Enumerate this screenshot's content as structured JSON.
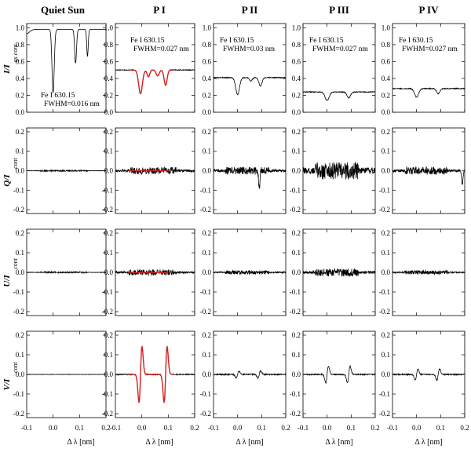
{
  "column_titles": [
    "Quiet Sun",
    "P I",
    "P II",
    "P III",
    "P IV"
  ],
  "row_labels": [
    {
      "main": "I/I",
      "sub": "qs cont"
    },
    {
      "main": "Q/I",
      "sub": "cont"
    },
    {
      "main": "U/I",
      "sub": "cont"
    },
    {
      "main": "V/I",
      "sub": "cont"
    }
  ],
  "x_axis_label": "Δ λ [nm]",
  "x_tick_labels": [
    "-0.1",
    "0.0",
    "0.1",
    "0.2"
  ],
  "annotations": [
    {
      "line1": "Fe I 630.15",
      "line2": "FWHM=0.016 nm"
    },
    {
      "line1": "Fe I 630.15",
      "line2": "FWHM=0.027 nm"
    },
    {
      "line1": "Fe I 630.15",
      "line2": "FWHM=0.03 nm"
    },
    {
      "line1": "Fe I 630.15",
      "line2": "FWHM=0.027 nm"
    },
    {
      "line1": "Fe I 630.15",
      "line2": "FWHM=0.027 nm"
    }
  ],
  "colors": {
    "observed": "#000000",
    "fit": "#d42020"
  },
  "chart_data": {
    "type": "line",
    "layout": "small multiples, 4 rows (Stokes I, Q, U, V) by 5 columns",
    "x": {
      "label": "Δ λ [nm]",
      "range": [
        -0.1,
        0.2
      ],
      "ticks": [
        -0.1,
        0.0,
        0.1,
        0.2
      ]
    },
    "rows": [
      {
        "stokes": "I",
        "ylabel": "I/I qs cont",
        "ylim": [
          0.0,
          1.05
        ],
        "yticks": [
          "0.0",
          "0.2",
          "0.4",
          "0.6",
          "0.8",
          "1.0"
        ]
      },
      {
        "stokes": "Q",
        "ylabel": "Q/I cont",
        "ylim": [
          -0.22,
          0.22
        ],
        "yticks": [
          "-0.2",
          "-0.1",
          "0.0",
          "0.1",
          "0.2"
        ]
      },
      {
        "stokes": "U",
        "ylabel": "U/I cont",
        "ylim": [
          -0.22,
          0.22
        ],
        "yticks": [
          "-0.2",
          "-0.1",
          "0.0",
          "0.1",
          "0.2"
        ]
      },
      {
        "stokes": "V",
        "ylabel": "V/I cont",
        "ylim": [
          -0.22,
          0.22
        ],
        "yticks": [
          "-0.2",
          "-0.1",
          "0.0",
          "0.1",
          "0.2"
        ]
      }
    ],
    "columns": [
      {
        "title": "Quiet Sun",
        "I": {
          "continuum": 0.98,
          "lines": [
            {
              "x": 0.0,
              "depth": 0.75,
              "w": 0.006
            },
            {
              "x": 0.085,
              "depth": 0.4,
              "w": 0.005
            },
            {
              "x": 0.13,
              "depth": 0.32,
              "w": 0.004
            },
            {
              "x": -0.1,
              "depth": 0.05,
              "w": 0.015
            }
          ]
        },
        "Q": {
          "noise": 0.004
        },
        "U": {
          "noise": 0.004
        },
        "V": {
          "noise": 0.0
        }
      },
      {
        "title": "P I",
        "I": {
          "continuum": 0.5,
          "lines": [
            {
              "x": -0.005,
              "depth": 0.28,
              "w": 0.01
            },
            {
              "x": 0.025,
              "depth": 0.08,
              "w": 0.007
            },
            {
              "x": 0.06,
              "depth": 0.07,
              "w": 0.008
            },
            {
              "x": 0.09,
              "depth": 0.18,
              "w": 0.008
            }
          ],
          "fit_range": [
            -0.05,
            0.12
          ]
        },
        "Q": {
          "noise": 0.018,
          "fit_range": [
            -0.05,
            0.1
          ]
        },
        "U": {
          "noise": 0.015,
          "fit_range": [
            -0.05,
            0.1
          ]
        },
        "V": {
          "amplitude": 0.2,
          "centers": [
            -0.005,
            0.09
          ],
          "fit_range": [
            -0.05,
            0.12
          ]
        }
      },
      {
        "title": "P II",
        "I": {
          "continuum": 0.41,
          "lines": [
            {
              "x": 0.0,
              "depth": 0.2,
              "w": 0.011
            },
            {
              "x": 0.055,
              "depth": 0.04,
              "w": 0.008
            },
            {
              "x": 0.095,
              "depth": 0.1,
              "w": 0.009
            }
          ]
        },
        "Q": {
          "noise": 0.02,
          "spike": {
            "x": 0.09,
            "value": -0.09
          }
        },
        "U": {
          "noise": 0.01
        },
        "V": {
          "amplitude": 0.025,
          "centers": [
            0.0,
            0.09
          ]
        }
      },
      {
        "title": "P III",
        "I": {
          "continuum": 0.24,
          "lines": [
            {
              "x": 0.0,
              "depth": 0.1,
              "w": 0.012
            },
            {
              "x": 0.09,
              "depth": 0.07,
              "w": 0.01
            }
          ]
        },
        "Q": {
          "noise": 0.045
        },
        "U": {
          "noise": 0.02
        },
        "V": {
          "amplitude": 0.06,
          "centers": [
            0.0,
            0.09
          ]
        }
      },
      {
        "title": "P IV",
        "I": {
          "continuum": 0.28,
          "lines": [
            {
              "x": 0.0,
              "depth": 0.1,
              "w": 0.012
            },
            {
              "x": 0.09,
              "depth": 0.06,
              "w": 0.01
            }
          ]
        },
        "Q": {
          "noise": 0.02,
          "spike": {
            "x": 0.19,
            "value": -0.07
          }
        },
        "U": {
          "noise": 0.01
        },
        "V": {
          "amplitude": 0.04,
          "centers": [
            0.0,
            0.09
          ]
        }
      }
    ]
  }
}
